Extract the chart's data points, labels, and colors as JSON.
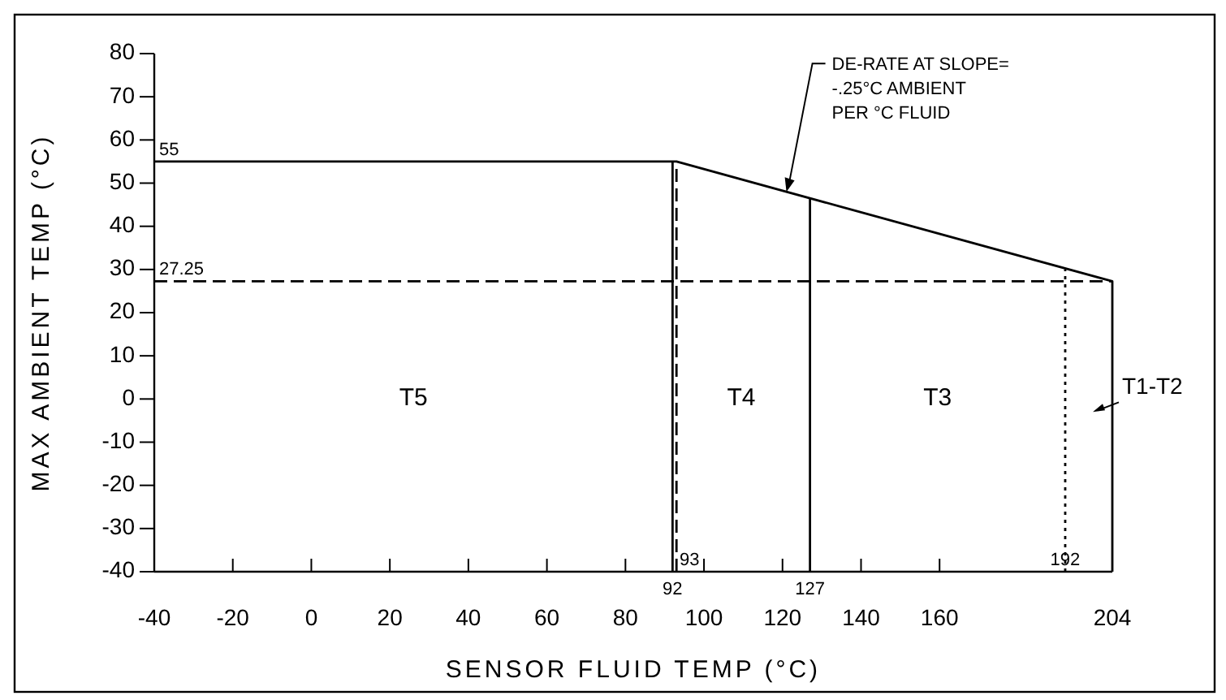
{
  "chart_data": {
    "type": "line",
    "xlabel": "SENSOR FLUID TEMP (°C)",
    "ylabel": "MAX AMBIENT TEMP (°C)",
    "xlim": [
      -40,
      204
    ],
    "xticks": [
      -40,
      -20,
      0,
      20,
      40,
      60,
      80,
      100,
      120,
      140,
      160,
      204
    ],
    "ylim": [
      -40,
      80
    ],
    "yticks": [
      -40,
      -30,
      -20,
      -10,
      0,
      10,
      20,
      30,
      40,
      50,
      60,
      70,
      80
    ],
    "grid": false,
    "marker": "none",
    "series": [
      {
        "color": "#000000",
        "x": [
          -40,
          93,
          204,
          204
        ],
        "values": [
          55,
          55,
          27.25,
          -40
        ],
        "line_style": "solid"
      },
      {
        "color": "#000000",
        "x": [
          92,
          92
        ],
        "values": [
          -40,
          55
        ],
        "line_style": "solid"
      },
      {
        "color": "#000000",
        "x": [
          127,
          127
        ],
        "values": [
          -40,
          46.5
        ],
        "line_style": "solid"
      },
      {
        "color": "#000000",
        "x": [
          93,
          93
        ],
        "values": [
          -40,
          55
        ],
        "line_style": "dashed"
      },
      {
        "color": "#000000",
        "x": [
          192,
          192
        ],
        "values": [
          -40,
          30
        ],
        "line_style": "dotted"
      },
      {
        "color": "#000000",
        "x": [
          -40,
          204
        ],
        "values": [
          27.25,
          27.25
        ],
        "line_style": "dashed"
      }
    ],
    "annotations": [
      {
        "text": "55",
        "x": -40,
        "y": 55
      },
      {
        "text": "27.25",
        "x": -40,
        "y": 27.25
      },
      {
        "text": "92",
        "x": 92,
        "y": -40
      },
      {
        "text": "93",
        "x": 93,
        "y": -40
      },
      {
        "text": "127",
        "x": 127,
        "y": -40
      },
      {
        "text": "192",
        "x": 192,
        "y": -40
      },
      "T5",
      "T4",
      "T3",
      "T1-T2",
      {
        "text": "DE-RATE AT SLOPE=\n-.25°C AMBIENT\nPER °C FLUID",
        "x": 121,
        "y": 48
      }
    ]
  }
}
